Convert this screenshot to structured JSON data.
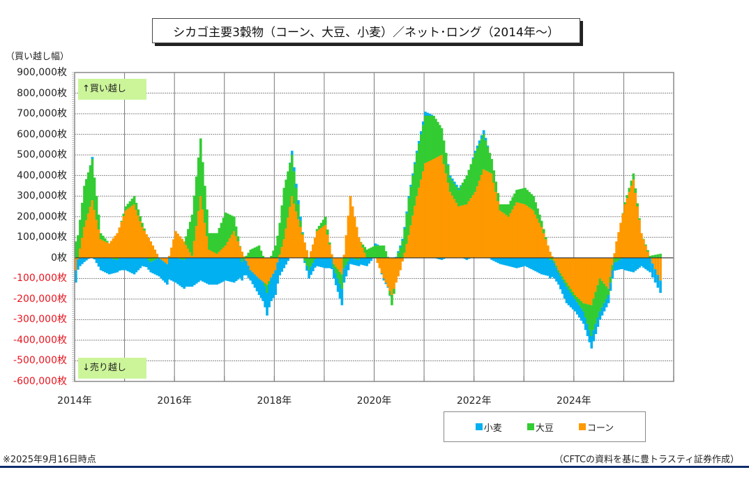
{
  "chart_data": {
    "type": "area",
    "stacked": true,
    "title": "シカゴ主要3穀物（コーン、大豆、小麦）／ネット･ロング（2014年～）",
    "ylabel": "（買い越し幅）",
    "xlabel": "",
    "ylim": [
      -600000,
      900000
    ],
    "xlim": [
      2014.0,
      2026.0
    ],
    "grid": true,
    "legend_position": "bottom-right",
    "y_ticks": [
      "900,000枚",
      "800,000枚",
      "700,000枚",
      "600,000枚",
      "500,000枚",
      "400,000枚",
      "300,000枚",
      "200,000枚",
      "100,000枚",
      "0枚",
      "-100,000枚",
      "-200,000枚",
      "-300,000枚",
      "-400,000枚",
      "-500,000枚",
      "-600,000枚"
    ],
    "y_tick_values": [
      900000,
      800000,
      700000,
      600000,
      500000,
      400000,
      300000,
      200000,
      100000,
      0,
      -100000,
      -200000,
      -300000,
      -400000,
      -500000,
      -600000
    ],
    "x_ticks": [
      "2014年",
      "2016年",
      "2018年",
      "2020年",
      "2022年",
      "2024年"
    ],
    "x_tick_values": [
      2014,
      2016,
      2018,
      2020,
      2022,
      2024
    ],
    "annotations": {
      "up": "↑買い越し",
      "down": "↓売り越し"
    },
    "x": [
      2014.0,
      2014.17,
      2014.33,
      2014.5,
      2014.67,
      2014.83,
      2015.0,
      2015.17,
      2015.33,
      2015.5,
      2015.67,
      2015.83,
      2016.0,
      2016.17,
      2016.33,
      2016.5,
      2016.67,
      2016.83,
      2017.0,
      2017.17,
      2017.33,
      2017.5,
      2017.67,
      2017.83,
      2018.0,
      2018.17,
      2018.33,
      2018.5,
      2018.67,
      2018.83,
      2019.0,
      2019.17,
      2019.33,
      2019.5,
      2019.67,
      2019.83,
      2020.0,
      2020.17,
      2020.33,
      2020.5,
      2020.67,
      2020.83,
      2021.0,
      2021.17,
      2021.33,
      2021.5,
      2021.67,
      2021.83,
      2022.0,
      2022.17,
      2022.33,
      2022.5,
      2022.67,
      2022.83,
      2023.0,
      2023.17,
      2023.33,
      2023.5,
      2023.67,
      2023.83,
      2024.0,
      2024.17,
      2024.33,
      2024.5,
      2024.67,
      2024.83,
      2025.0,
      2025.17,
      2025.33,
      2025.5,
      2025.71
    ],
    "series": [
      {
        "name": "小麦",
        "color": "#00b0f0",
        "values": [
          -60000,
          -20000,
          10000,
          -60000,
          -80000,
          -60000,
          -60000,
          -80000,
          -40000,
          -50000,
          -90000,
          -100000,
          -120000,
          -140000,
          -140000,
          -110000,
          -130000,
          -130000,
          -110000,
          -120000,
          -90000,
          -50000,
          -80000,
          -110000,
          -120000,
          -50000,
          20000,
          20000,
          -40000,
          -40000,
          -50000,
          -50000,
          -80000,
          -30000,
          -30000,
          -40000,
          10000,
          -10000,
          0,
          10000,
          10000,
          10000,
          20000,
          0,
          -10000,
          10000,
          10000,
          -10000,
          10000,
          20000,
          -10000,
          -30000,
          -40000,
          -50000,
          -40000,
          -60000,
          -80000,
          -90000,
          -60000,
          -80000,
          -60000,
          -60000,
          -60000,
          -40000,
          -40000,
          -40000,
          -60000,
          -70000,
          -40000,
          -70000,
          -60000
        ]
      },
      {
        "name": "大豆",
        "color": "#33cc33",
        "values": [
          80000,
          200000,
          200000,
          30000,
          0,
          -10000,
          20000,
          40000,
          20000,
          -20000,
          0,
          0,
          0,
          -10000,
          200000,
          280000,
          80000,
          100000,
          160000,
          70000,
          -20000,
          40000,
          60000,
          -40000,
          60000,
          250000,
          200000,
          30000,
          -60000,
          10000,
          40000,
          -20000,
          -70000,
          0,
          -10000,
          40000,
          60000,
          60000,
          -50000,
          50000,
          180000,
          210000,
          230000,
          210000,
          130000,
          70000,
          80000,
          140000,
          190000,
          170000,
          70000,
          30000,
          60000,
          60000,
          80000,
          70000,
          30000,
          -10000,
          -10000,
          -20000,
          -20000,
          -40000,
          -150000,
          -160000,
          -30000,
          -20000,
          10000,
          30000,
          0,
          10000,
          20000
        ]
      },
      {
        "name": "コーン",
        "color": "#ff9900",
        "values": [
          -60000,
          150000,
          280000,
          90000,
          70000,
          120000,
          230000,
          260000,
          150000,
          80000,
          0,
          -30000,
          130000,
          80000,
          10000,
          300000,
          40000,
          20000,
          60000,
          130000,
          30000,
          -60000,
          -100000,
          -130000,
          -60000,
          90000,
          300000,
          150000,
          0,
          130000,
          160000,
          -30000,
          -80000,
          300000,
          100000,
          0,
          0,
          -100000,
          -180000,
          -60000,
          110000,
          300000,
          460000,
          480000,
          500000,
          320000,
          250000,
          260000,
          320000,
          430000,
          410000,
          230000,
          200000,
          270000,
          260000,
          230000,
          150000,
          30000,
          -60000,
          -120000,
          -180000,
          -220000,
          -230000,
          -100000,
          -150000,
          80000,
          260000,
          380000,
          120000,
          0,
          -110000
        ]
      }
    ]
  },
  "notes": {
    "footnote": "※2025年9月16日時点",
    "source": "（CFTCの資料を基に豊トラスティ証券作成）"
  },
  "legend": [
    "小麦",
    "大豆",
    "コーン"
  ]
}
